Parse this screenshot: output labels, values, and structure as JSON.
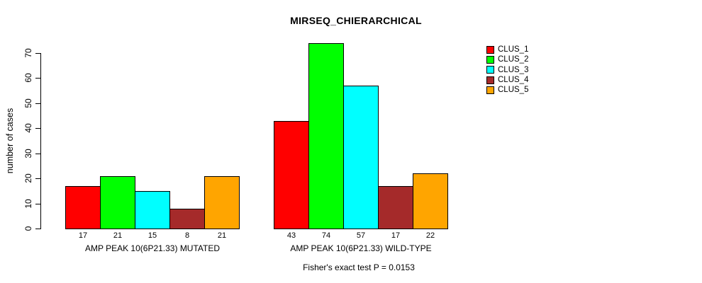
{
  "chart_data": {
    "type": "bar",
    "title": "MIRSEQ_CHIERARCHICAL",
    "ylabel": "number of cases",
    "xlabel": "",
    "subtitle": "Fisher's exact test P = 0.0153",
    "ylim": [
      0,
      70
    ],
    "yticks": [
      0,
      10,
      20,
      30,
      40,
      50,
      60,
      70
    ],
    "grid": false,
    "legend_position": "right-of-plot-top",
    "bar_outline_color": "#000000",
    "categories": [
      "AMP PEAK 10(6P21.33) MUTATED",
      "AMP PEAK 10(6P21.33) WILD-TYPE"
    ],
    "series": [
      {
        "name": "CLUS_1",
        "color": "#FF0000",
        "values": [
          17,
          43
        ]
      },
      {
        "name": "CLUS_2",
        "color": "#00FF00",
        "values": [
          21,
          74
        ]
      },
      {
        "name": "CLUS_3",
        "color": "#00FFFF",
        "values": [
          15,
          57
        ]
      },
      {
        "name": "CLUS_4",
        "color": "#A52A2A",
        "values": [
          8,
          17
        ]
      },
      {
        "name": "CLUS_5",
        "color": "#FFA500",
        "values": [
          21,
          22
        ]
      }
    ]
  }
}
